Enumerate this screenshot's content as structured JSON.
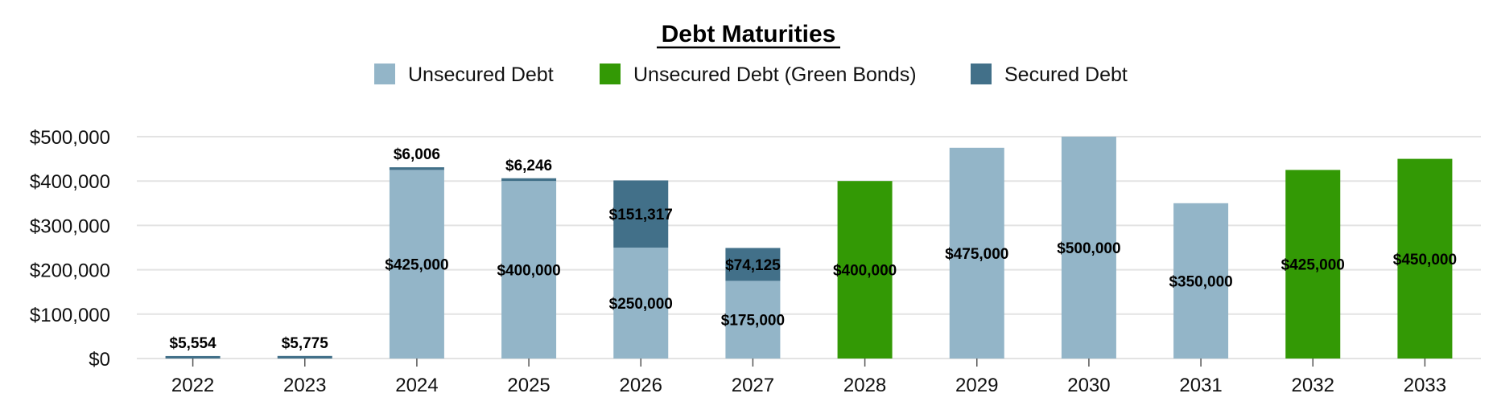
{
  "chart_data": {
    "type": "bar",
    "stacked": true,
    "title": "Debt Maturities",
    "xlabel": "",
    "ylabel": "",
    "categories": [
      "2022",
      "2023",
      "2024",
      "2025",
      "2026",
      "2027",
      "2028",
      "2029",
      "2030",
      "2031",
      "2032",
      "2033"
    ],
    "series": [
      {
        "name": "Unsecured Debt",
        "color": "#93b5c8",
        "values": [
          0,
          0,
          425000,
          400000,
          250000,
          175000,
          0,
          475000,
          500000,
          350000,
          0,
          0
        ],
        "labels": [
          "",
          "",
          "$425,000",
          "$400,000",
          "$250,000",
          "$175,000",
          "",
          "$475,000",
          "$500,000",
          "$350,000",
          "",
          ""
        ]
      },
      {
        "name": "Unsecured Debt (Green Bonds)",
        "color": "#339905",
        "values": [
          0,
          0,
          0,
          0,
          0,
          0,
          400000,
          0,
          0,
          0,
          425000,
          450000
        ],
        "labels": [
          "",
          "",
          "",
          "",
          "",
          "",
          "$400,000",
          "",
          "",
          "",
          "$425,000",
          "$450,000"
        ]
      },
      {
        "name": "Secured Debt",
        "color": "#427089",
        "values": [
          5554,
          5775,
          6006,
          6246,
          151317,
          74125,
          0,
          0,
          0,
          0,
          0,
          0
        ],
        "labels": [
          "$5,554",
          "$5,775",
          "$6,006",
          "$6,246",
          "$151,317",
          "$74,125",
          "",
          "",
          "",
          "",
          "",
          ""
        ]
      }
    ],
    "ylim": [
      0,
      500000
    ],
    "yticks": [
      0,
      100000,
      200000,
      300000,
      400000,
      500000
    ],
    "ytick_labels": [
      "$0",
      "$100,000",
      "$200,000",
      "$300,000",
      "$400,000",
      "$500,000"
    ],
    "grid": "horizontal",
    "legend": "top"
  }
}
